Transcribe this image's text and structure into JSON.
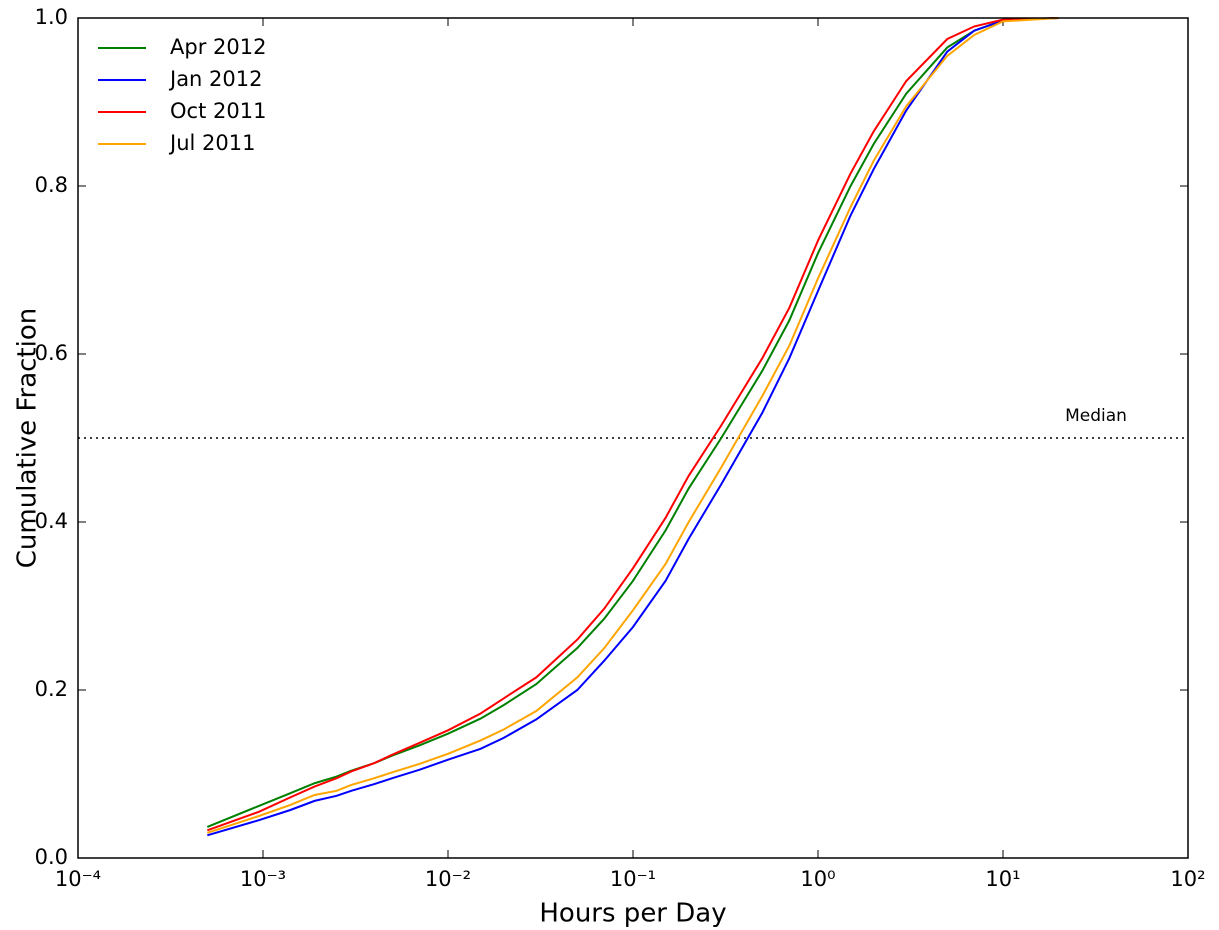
{
  "chart_data": {
    "type": "line",
    "xlabel": "Hours per Day",
    "ylabel": "Cumulative Fraction",
    "x": [
      0.0005,
      0.00095,
      0.0014,
      0.0019,
      0.0025,
      0.003,
      0.004,
      0.005,
      0.007,
      0.01,
      0.015,
      0.02,
      0.03,
      0.05,
      0.07,
      0.1,
      0.15,
      0.2,
      0.3,
      0.5,
      0.7,
      1,
      1.5,
      2,
      3,
      5,
      7,
      10,
      20
    ],
    "series": [
      {
        "name": "Apr 2012",
        "color": "#008000",
        "values": [
          0.037,
          0.062,
          0.077,
          0.089,
          0.097,
          0.104,
          0.113,
          0.122,
          0.134,
          0.148,
          0.166,
          0.182,
          0.207,
          0.25,
          0.285,
          0.33,
          0.39,
          0.44,
          0.5,
          0.58,
          0.64,
          0.72,
          0.8,
          0.85,
          0.91,
          0.965,
          0.985,
          0.997,
          1.0
        ]
      },
      {
        "name": "Jan 2012",
        "color": "#0000ff",
        "values": [
          0.027,
          0.045,
          0.057,
          0.068,
          0.074,
          0.08,
          0.088,
          0.095,
          0.105,
          0.117,
          0.13,
          0.143,
          0.165,
          0.2,
          0.235,
          0.275,
          0.33,
          0.38,
          0.445,
          0.53,
          0.595,
          0.675,
          0.765,
          0.82,
          0.89,
          0.96,
          0.985,
          0.997,
          1.0
        ]
      },
      {
        "name": "Oct 2011",
        "color": "#ff0000",
        "values": [
          0.033,
          0.055,
          0.072,
          0.085,
          0.095,
          0.103,
          0.113,
          0.123,
          0.137,
          0.152,
          0.172,
          0.19,
          0.215,
          0.26,
          0.297,
          0.345,
          0.405,
          0.455,
          0.515,
          0.595,
          0.655,
          0.735,
          0.815,
          0.865,
          0.925,
          0.975,
          0.99,
          0.998,
          1.0
        ]
      },
      {
        "name": "Jul 2011",
        "color": "#ffa500",
        "values": [
          0.03,
          0.05,
          0.063,
          0.075,
          0.08,
          0.087,
          0.095,
          0.102,
          0.112,
          0.124,
          0.14,
          0.153,
          0.175,
          0.215,
          0.25,
          0.295,
          0.35,
          0.4,
          0.465,
          0.55,
          0.61,
          0.69,
          0.775,
          0.83,
          0.895,
          0.955,
          0.98,
          0.996,
          1.0
        ]
      }
    ],
    "xscale": "log",
    "xlim": [
      0.0001,
      100
    ],
    "xticks": [
      {
        "value": 0.0001,
        "label": "10⁻⁴"
      },
      {
        "value": 0.001,
        "label": "10⁻³"
      },
      {
        "value": 0.01,
        "label": "10⁻²"
      },
      {
        "value": 0.1,
        "label": "10⁻¹"
      },
      {
        "value": 1,
        "label": "10⁰"
      },
      {
        "value": 10,
        "label": "10¹"
      },
      {
        "value": 100,
        "label": "10²"
      }
    ],
    "ylim": [
      0,
      1
    ],
    "yticks": [
      {
        "value": 0,
        "label": "0.0"
      },
      0.2,
      0.4,
      0.6,
      0.8,
      {
        "value": 1,
        "label": "1.0"
      }
    ],
    "hline": {
      "y": 0.5,
      "label": "Median"
    },
    "legend": "upper left"
  }
}
